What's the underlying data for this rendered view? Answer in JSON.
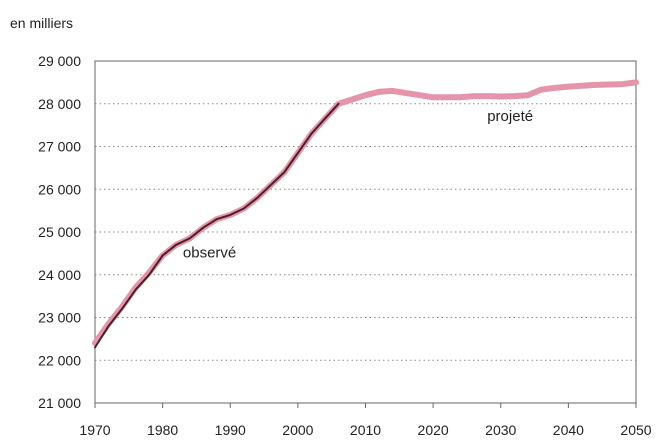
{
  "chart_data": {
    "type": "line",
    "unit_label": "en milliers",
    "xlim": [
      1970,
      2050
    ],
    "ylim": [
      21000,
      29000
    ],
    "x_ticks": [
      1970,
      1980,
      1990,
      2000,
      2010,
      2020,
      2030,
      2040,
      2050
    ],
    "y_ticks": [
      {
        "value": 21000,
        "label": "21 000"
      },
      {
        "value": 22000,
        "label": "22 000"
      },
      {
        "value": 23000,
        "label": "23 000"
      },
      {
        "value": 24000,
        "label": "24 000"
      },
      {
        "value": 25000,
        "label": "25 000"
      },
      {
        "value": 26000,
        "label": "26 000"
      },
      {
        "value": 27000,
        "label": "27 000"
      },
      {
        "value": 28000,
        "label": "28 000"
      },
      {
        "value": 29000,
        "label": "29 000"
      }
    ],
    "grid": "horizontal dotted",
    "series": [
      {
        "name": "observé",
        "color": "#4a1f27",
        "x": [
          1970,
          1972,
          1974,
          1976,
          1978,
          1980,
          1982,
          1984,
          1986,
          1988,
          1990,
          1992,
          1994,
          1996,
          1998,
          2000,
          2002,
          2004,
          2006
        ],
        "y": [
          22300,
          22800,
          23200,
          23650,
          24000,
          24450,
          24700,
          24850,
          25100,
          25300,
          25400,
          25550,
          25800,
          26100,
          26400,
          26850,
          27300,
          27650,
          28000
        ]
      },
      {
        "name": "projeté",
        "color": "#e495ab",
        "x": [
          1970,
          1972,
          1974,
          1976,
          1978,
          1980,
          1982,
          1984,
          1986,
          1988,
          1990,
          1992,
          1994,
          1996,
          1998,
          2000,
          2002,
          2004,
          2006,
          2008,
          2010,
          2012,
          2014,
          2016,
          2018,
          2020,
          2022,
          2024,
          2026,
          2028,
          2030,
          2032,
          2034,
          2036,
          2038,
          2040,
          2042,
          2044,
          2046,
          2048,
          2050
        ],
        "y": [
          22400,
          22850,
          23250,
          23700,
          24050,
          24450,
          24700,
          24850,
          25100,
          25300,
          25400,
          25550,
          25800,
          26100,
          26400,
          26850,
          27300,
          27650,
          28000,
          28100,
          28200,
          28280,
          28300,
          28250,
          28200,
          28150,
          28150,
          28150,
          28180,
          28180,
          28170,
          28180,
          28200,
          28330,
          28370,
          28400,
          28420,
          28440,
          28450,
          28460,
          28500
        ]
      }
    ],
    "annotations": [
      {
        "text": "observé",
        "x": 1983,
        "y": 24400
      },
      {
        "text": "projeté",
        "x": 2028,
        "y": 27600
      }
    ]
  }
}
